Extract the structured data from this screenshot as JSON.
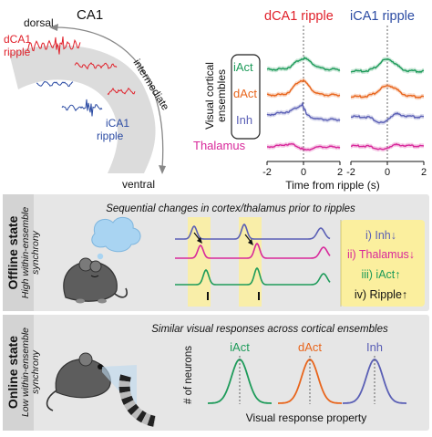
{
  "colors": {
    "red": "#e0202a",
    "blue": "#2b4ba3",
    "green": "#1e9b5a",
    "orange": "#e8651c",
    "purple": "#5a5fb5",
    "magenta": "#d8289a",
    "gray_panel": "#e6e6e6",
    "yellow_highlight": "#fbef9e"
  },
  "top_left": {
    "title": "CA1",
    "dorsal": "dorsal",
    "ventral": "ventral",
    "intermediate": "intermediate",
    "dca1_ripple_line1": "dCA1",
    "dca1_ripple_line2": "ripple",
    "ica1_ripple_line1": "iCA1",
    "ica1_ripple_line2": "ripple"
  },
  "top_right": {
    "dca1_title": "dCA1 ripple",
    "ica1_title": "iCA1 ripple",
    "ylabel_line1": "Visual cortical",
    "ylabel_line2": "ensembles",
    "iact": "iAct",
    "dact": "dAct",
    "inh": "Inh",
    "thalamus": "Thalamus",
    "ticks": [
      "-2",
      "0",
      "2",
      "-2",
      "0",
      "2"
    ],
    "xlabel": "Time from ripple (s)"
  },
  "offline": {
    "state_label": "Offline state",
    "sub_line1": "High within-ensemble",
    "sub_line2": "synchrony",
    "heading": "Sequential changes in cortex/thalamus prior to ripples",
    "steps": [
      "i) Inh↓",
      "ii) Thalamus↓",
      "iii) iAct↑",
      "iv) Ripple↑"
    ]
  },
  "online": {
    "state_label": "Online state",
    "sub_line1": "Low within-ensemble",
    "sub_line2": "synchrony",
    "heading": "Similar visual responses across cortical ensembles",
    "ylabel": "# of neurons",
    "tuning_labels": [
      "iAct",
      "dAct",
      "Inh"
    ],
    "xlabel": "Visual response property"
  }
}
